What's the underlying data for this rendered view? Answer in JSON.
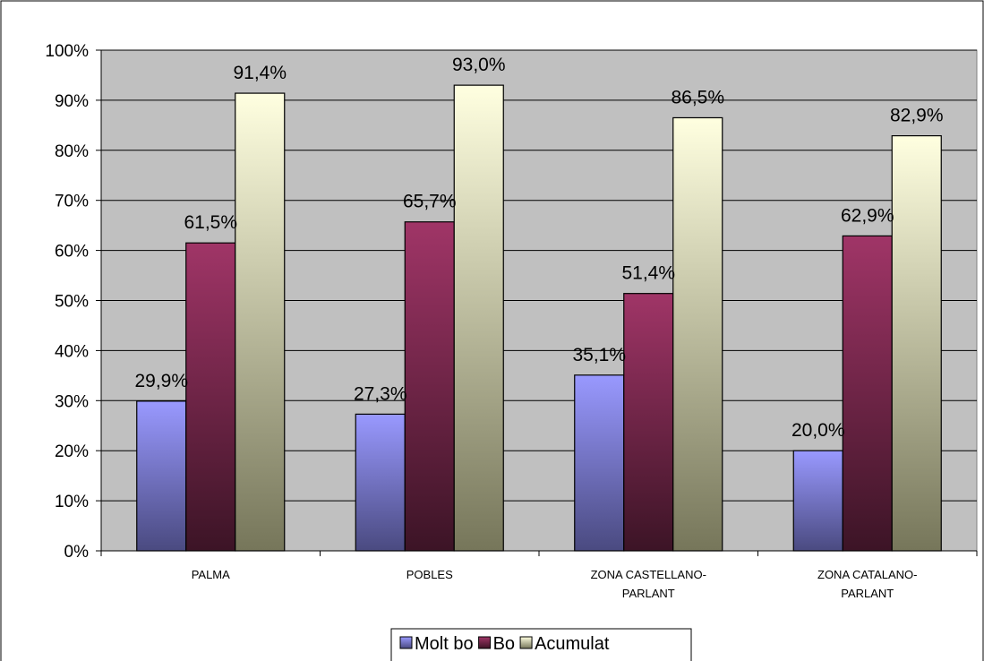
{
  "chart_data": {
    "type": "bar",
    "categories": [
      [
        "PALMA"
      ],
      [
        "POBLES"
      ],
      [
        "ZONA CASTELLANO-",
        "PARLANT"
      ],
      [
        "ZONA CATALANO-",
        "PARLANT"
      ]
    ],
    "series": [
      {
        "name": "Molt bo",
        "values": [
          29.9,
          27.3,
          35.1,
          20.0
        ],
        "labels": [
          "29,9%",
          "27,3%",
          "35,1%",
          "20,0%"
        ],
        "color_top": "#9999ff",
        "color_bottom": "#4a4a80"
      },
      {
        "name": "Bo",
        "values": [
          61.5,
          65.7,
          51.4,
          62.9
        ],
        "labels": [
          "61,5%",
          "65,7%",
          "51,4%",
          "62,9%"
        ],
        "color_top": "#a03567",
        "color_bottom": "#3c1426"
      },
      {
        "name": "Acumulat",
        "values": [
          91.4,
          93.0,
          86.5,
          82.9
        ],
        "labels": [
          "91,4%",
          "93,0%",
          "86,5%",
          "82,9%"
        ],
        "color_top": "#ffffe0",
        "color_bottom": "#76765a"
      }
    ],
    "ylim": [
      0,
      100
    ],
    "yticks": [
      "0%",
      "10%",
      "20%",
      "30%",
      "40%",
      "50%",
      "60%",
      "70%",
      "80%",
      "90%",
      "100%"
    ],
    "grid": true,
    "plot_background": "#c0c0c0",
    "legend_position": "bottom"
  }
}
